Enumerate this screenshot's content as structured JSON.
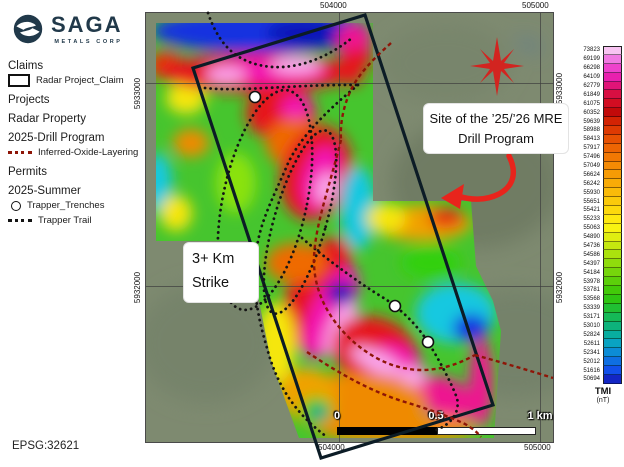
{
  "logo": {
    "name": "SAGA",
    "subtitle": "METALS CORP"
  },
  "legend": {
    "sections": [
      {
        "header": "Claims",
        "items": [
          {
            "swatch": "claim-rect",
            "label": "Radar Project_Claim"
          }
        ]
      },
      {
        "header": "Projects",
        "items": []
      },
      {
        "header": "Radar Property",
        "items": []
      },
      {
        "header": "2025-Drill Program",
        "items": [
          {
            "swatch": "red-dotted",
            "label": "Inferred-Oxide-Layering"
          }
        ]
      },
      {
        "header": "Permits",
        "items": []
      },
      {
        "header": "2025-Summer",
        "items": [
          {
            "swatch": "circle",
            "label": "Trapper_Trenches"
          },
          {
            "swatch": "black-dotted",
            "label": "Trapper Trail"
          }
        ]
      }
    ]
  },
  "map": {
    "axis": {
      "top": [
        "504000",
        "505000"
      ],
      "bottom": [
        "504000",
        "505000"
      ],
      "left": [
        "5933000",
        "5932000"
      ],
      "right": [
        "5933000",
        "5932000"
      ]
    },
    "annotations": {
      "mre": "Site of the ’25/’26 MRE Drill Program",
      "strike": "3+ Km Strike"
    },
    "scalebar": {
      "start": "0",
      "mid": "0.5",
      "end": "1 km"
    }
  },
  "colorbar": {
    "title": "TMI",
    "units": "(nT)",
    "entries": [
      {
        "value": "73823",
        "color": "#f8c4f2"
      },
      {
        "value": "69199",
        "color": "#f07ae2"
      },
      {
        "value": "66298",
        "color": "#ee42cc"
      },
      {
        "value": "64109",
        "color": "#e920ae"
      },
      {
        "value": "62779",
        "color": "#e01478"
      },
      {
        "value": "61849",
        "color": "#d80f42"
      },
      {
        "value": "61075",
        "color": "#d20d22"
      },
      {
        "value": "60352",
        "color": "#c20a0a"
      },
      {
        "value": "59639",
        "color": "#d32304"
      },
      {
        "value": "58988",
        "color": "#de3a03"
      },
      {
        "value": "58413",
        "color": "#e75103"
      },
      {
        "value": "57917",
        "color": "#ed6503"
      },
      {
        "value": "57496",
        "color": "#f17803"
      },
      {
        "value": "57049",
        "color": "#f48a04"
      },
      {
        "value": "56624",
        "color": "#f69b05"
      },
      {
        "value": "56242",
        "color": "#f8ab07"
      },
      {
        "value": "55930",
        "color": "#fabb09"
      },
      {
        "value": "55651",
        "color": "#fbca0b"
      },
      {
        "value": "55421",
        "color": "#fdd90d"
      },
      {
        "value": "55233",
        "color": "#fee910"
      },
      {
        "value": "55063",
        "color": "#f8f312"
      },
      {
        "value": "54890",
        "color": "#dfee11"
      },
      {
        "value": "54736",
        "color": "#c5e80f"
      },
      {
        "value": "54586",
        "color": "#abe20e"
      },
      {
        "value": "54397",
        "color": "#90dc0c"
      },
      {
        "value": "54184",
        "color": "#76d60b"
      },
      {
        "value": "53978",
        "color": "#5cd00a"
      },
      {
        "value": "53781",
        "color": "#42ca09"
      },
      {
        "value": "53568",
        "color": "#2ec512"
      },
      {
        "value": "53339",
        "color": "#20bf33"
      },
      {
        "value": "53171",
        "color": "#15b957"
      },
      {
        "value": "53010",
        "color": "#0db37b"
      },
      {
        "value": "52824",
        "color": "#08ad9f"
      },
      {
        "value": "52611",
        "color": "#09a3c2"
      },
      {
        "value": "52341",
        "color": "#0c8cd6"
      },
      {
        "value": "52012",
        "color": "#0f6fe2"
      },
      {
        "value": "51616",
        "color": "#1250ea"
      },
      {
        "value": "50694",
        "color": "#1326c4"
      }
    ]
  },
  "footer": {
    "epsg": "EPSG:32621"
  },
  "accents": {
    "compass": "#d22420",
    "arrow": "#e8241c",
    "claim_outline": "#0c1c26",
    "oxide": "#8e1507"
  }
}
